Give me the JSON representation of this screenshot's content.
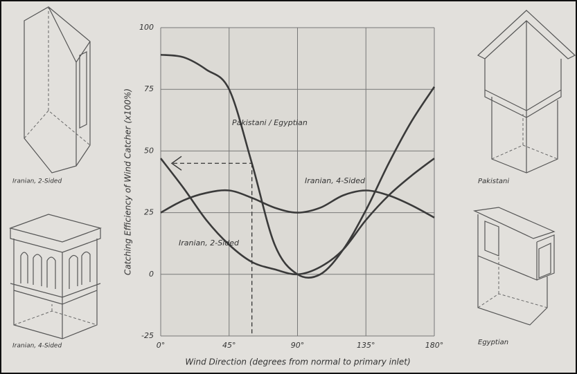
{
  "chart_data": {
    "type": "line",
    "x_label": "Wind Direction (degrees from normal to primary inlet)",
    "y_label": "Catching Efficiency of Wind Catcher (x100%)",
    "x": [
      0,
      15,
      30,
      45,
      60,
      75,
      90,
      105,
      120,
      135,
      150,
      165,
      180
    ],
    "series": [
      {
        "name": "Pakistani / Egyptian",
        "color": "#3a3a3a",
        "values": [
          89,
          88,
          83,
          75,
          45,
          12,
          0,
          0,
          10,
          26,
          45,
          62,
          76
        ]
      },
      {
        "name": "Iranian, 2-Sided",
        "color": "#3a3a3a",
        "values": [
          47,
          35,
          22,
          12,
          5,
          2,
          0,
          3,
          10,
          22,
          32,
          40,
          47
        ]
      },
      {
        "name": "Iranian, 4-Sided",
        "color": "#3a3a3a",
        "values": [
          25,
          30,
          33,
          34,
          31,
          27,
          25,
          27,
          32,
          34,
          32,
          28,
          23
        ]
      }
    ],
    "xlim": [
      0,
      180
    ],
    "xticks": [
      {
        "value": 0,
        "label": "0°"
      },
      {
        "value": 45,
        "label": "45°"
      },
      {
        "value": 90,
        "label": "90°"
      },
      {
        "value": 135,
        "label": "135°"
      },
      {
        "value": 180,
        "label": "180°"
      }
    ],
    "ylim": [
      -25,
      100
    ],
    "yticks": [
      -25,
      0,
      25,
      50,
      75,
      100
    ],
    "grid": true,
    "illustrations": [
      "Iranian, 2-Sided",
      "Iranian, 4-Sided",
      "Pakistani",
      "Egyptian"
    ]
  }
}
